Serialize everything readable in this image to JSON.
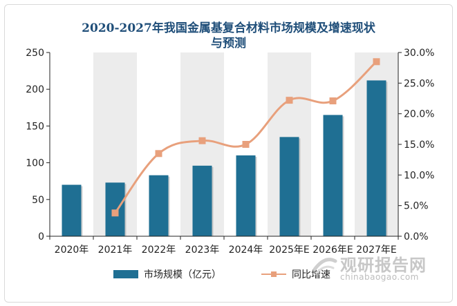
{
  "colors": {
    "bar": "#1f6f93",
    "line": "#e8a07c",
    "title": "#1f4e79",
    "stripe": "#ececec",
    "axis": "#222222"
  },
  "chart_data": {
    "type": "bar+line",
    "title": "2020-2027年我国金属基复合材料市场规模及增速现状与预测",
    "categories": [
      "2020年",
      "2021年",
      "2022年",
      "2023年",
      "2024年",
      "2025年E",
      "2026年E",
      "2027年E"
    ],
    "series": [
      {
        "name": "市场规模（亿元）",
        "type": "bar",
        "axis": "left",
        "values": [
          70,
          73,
          83,
          96,
          110,
          135,
          165,
          212
        ]
      },
      {
        "name": "同比增速",
        "type": "line",
        "axis": "right",
        "values": [
          null,
          3.8,
          13.5,
          15.6,
          15.0,
          22.2,
          22.1,
          28.5
        ]
      }
    ],
    "y_left": {
      "min": 0,
      "max": 250,
      "ticks": [
        "0",
        "50",
        "100",
        "150",
        "200",
        "250"
      ]
    },
    "y_right": {
      "min": 0,
      "max": 30,
      "ticks": [
        "0.0%",
        "5.0%",
        "10.0%",
        "15.0%",
        "20.0%",
        "25.0%",
        "30.0%"
      ]
    }
  },
  "watermark": {
    "cn": "观研报告网",
    "en": "chinabaogao.com"
  }
}
